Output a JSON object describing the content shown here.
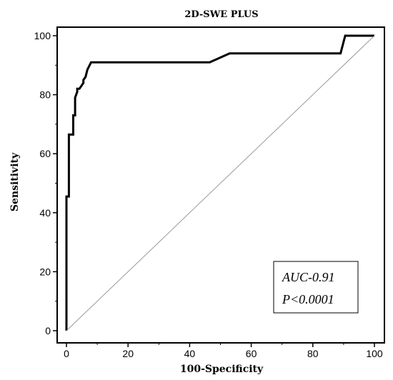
{
  "chart_data": {
    "type": "line",
    "title": "2D-SWE PLUS",
    "xlabel": "100-Specificity",
    "ylabel": "Sensitivity",
    "xlim": [
      0,
      100
    ],
    "ylim": [
      0,
      100
    ],
    "xticks": [
      0,
      20,
      40,
      60,
      80,
      100
    ],
    "yticks": [
      0,
      20,
      40,
      60,
      80,
      100
    ],
    "grid": false,
    "series": [
      {
        "style": "roc-curve",
        "x": [
          0,
          0,
          0.8,
          0.8,
          2.2,
          2.2,
          2.8,
          2.8,
          3.5,
          3.5,
          4.2,
          5.5,
          5.5,
          6.2,
          6.8,
          8,
          46.5,
          53,
          89,
          90.5,
          100
        ],
        "y": [
          0,
          45.5,
          45.5,
          66.5,
          66.5,
          73,
          73,
          79,
          81,
          82,
          82,
          84,
          85,
          86,
          88.5,
          91,
          91,
          94,
          94,
          100,
          100
        ]
      },
      {
        "style": "reference-diagonal",
        "x": [
          0,
          100
        ],
        "y": [
          0,
          100
        ]
      }
    ],
    "annotations": [
      "AUC-0.91",
      "P<0.0001"
    ]
  }
}
